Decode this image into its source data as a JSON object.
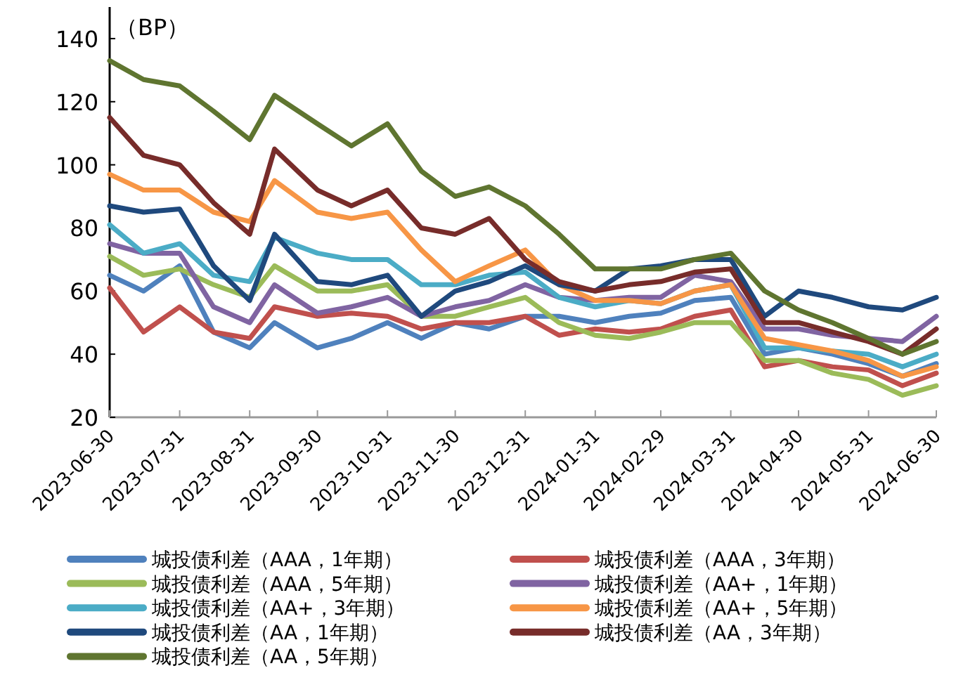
{
  "chart_data": {
    "type": "line",
    "ylabel": "（BP）",
    "legend": "bottom",
    "grid": false,
    "x": [
      "2023-06-30",
      "2023-07-15",
      "2023-07-31",
      "2023-08-15",
      "2023-08-31",
      "2023-09-11",
      "2023-09-30",
      "2023-10-15",
      "2023-10-31",
      "2023-11-15",
      "2023-11-30",
      "2023-12-15",
      "2023-12-31",
      "2024-01-15",
      "2024-01-31",
      "2024-02-15",
      "2024-02-29",
      "2024-03-15",
      "2024-03-31",
      "2024-04-15",
      "2024-04-30",
      "2024-05-15",
      "2024-05-31",
      "2024-06-15",
      "2024-06-30"
    ],
    "xlim": [
      "2023-06-30",
      "2024-06-30"
    ],
    "xticks": [
      "2023-06-30",
      "2023-07-31",
      "2023-08-31",
      "2023-09-30",
      "2023-10-31",
      "2023-11-30",
      "2023-12-31",
      "2024-01-31",
      "2024-02-29",
      "2024-03-31",
      "2024-04-30",
      "2024-05-31",
      "2024-06-30"
    ],
    "ylim": [
      20,
      150
    ],
    "yticks": [
      20,
      40,
      60,
      80,
      100,
      120,
      140
    ],
    "series": [
      {
        "name": "城投债利差（AAA，1年期）",
        "color": "#4f81bd",
        "values": [
          65,
          60,
          68,
          47,
          42,
          50,
          42,
          45,
          50,
          45,
          50,
          48,
          52,
          52,
          50,
          52,
          53,
          57,
          58,
          40,
          42,
          40,
          37,
          33,
          37
        ]
      },
      {
        "name": "城投债利差（AAA，3年期）",
        "color": "#c0504d",
        "values": [
          61,
          47,
          55,
          47,
          45,
          55,
          52,
          53,
          52,
          48,
          50,
          50,
          52,
          46,
          48,
          47,
          48,
          52,
          54,
          36,
          38,
          36,
          35,
          30,
          34
        ]
      },
      {
        "name": "城投债利差（AAA，5年期）",
        "color": "#9bbb59",
        "values": [
          71,
          65,
          67,
          62,
          58,
          68,
          60,
          60,
          62,
          52,
          52,
          55,
          58,
          50,
          46,
          45,
          47,
          50,
          50,
          38,
          38,
          34,
          32,
          27,
          30
        ]
      },
      {
        "name": "城投债利差（AA+，1年期）",
        "color": "#8064a2",
        "values": [
          75,
          72,
          72,
          55,
          50,
          62,
          53,
          55,
          58,
          52,
          55,
          57,
          62,
          58,
          57,
          58,
          58,
          65,
          63,
          48,
          48,
          46,
          45,
          44,
          52
        ]
      },
      {
        "name": "城投债利差（AA+，3年期）",
        "color": "#4bacc6",
        "values": [
          81,
          72,
          75,
          65,
          63,
          77,
          72,
          70,
          70,
          62,
          62,
          65,
          66,
          58,
          55,
          57,
          56,
          60,
          62,
          42,
          42,
          41,
          40,
          36,
          40
        ]
      },
      {
        "name": "城投债利差（AA+，5年期）",
        "color": "#f79646",
        "values": [
          97,
          92,
          92,
          85,
          82,
          95,
          85,
          83,
          85,
          73,
          63,
          68,
          73,
          62,
          57,
          57,
          56,
          60,
          62,
          45,
          43,
          41,
          38,
          33,
          36
        ]
      },
      {
        "name": "城投债利差（AA，1年期）",
        "color": "#1f497d",
        "values": [
          87,
          85,
          86,
          68,
          57,
          78,
          63,
          62,
          65,
          52,
          60,
          63,
          68,
          62,
          60,
          67,
          68,
          70,
          70,
          52,
          60,
          58,
          55,
          54,
          58
        ]
      },
      {
        "name": "城投债利差（AA，3年期）",
        "color": "#772c2a",
        "values": [
          115,
          103,
          100,
          88,
          78,
          105,
          92,
          87,
          92,
          80,
          78,
          83,
          70,
          63,
          60,
          62,
          63,
          66,
          67,
          50,
          50,
          47,
          44,
          40,
          48
        ]
      },
      {
        "name": "城投债利差（AA，5年期）",
        "color": "#5f7530",
        "values": [
          133,
          127,
          125,
          117,
          108,
          122,
          113,
          106,
          113,
          98,
          90,
          93,
          87,
          78,
          67,
          67,
          67,
          70,
          72,
          60,
          54,
          50,
          45,
          40,
          44
        ]
      }
    ]
  }
}
